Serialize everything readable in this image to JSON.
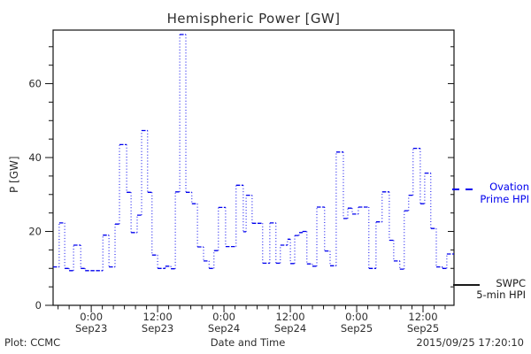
{
  "footer": {
    "plot_label": "Plot: CCMC",
    "timestamp": "2015/09/25 17:20:10"
  },
  "chart_data": {
    "type": "line",
    "subtype": "step-line-dotted",
    "title": "Hemispheric Power [GW]",
    "ylabel": "P [GW]",
    "xlabel": "Date and Time",
    "ylim": [
      0,
      74.5
    ],
    "y_major_ticks": [
      0,
      20,
      40,
      60
    ],
    "y_minor_step": 5,
    "grid": false,
    "x_span_hours": 72.5,
    "x_start": "Sep22 ~17:20",
    "x_major_ticks": [
      {
        "h": 6.9,
        "time": "0:00",
        "date": "Sep23"
      },
      {
        "h": 18.9,
        "time": "12:00",
        "date": "Sep23"
      },
      {
        "h": 30.9,
        "time": "0:00",
        "date": "Sep24"
      },
      {
        "h": 42.9,
        "time": "12:00",
        "date": "Sep24"
      },
      {
        "h": 54.9,
        "time": "0:00",
        "date": "Sep25"
      },
      {
        "h": 66.9,
        "time": "12:00",
        "date": "Sep25"
      }
    ],
    "x_minor_step_hours": 2,
    "x_minor_offset_hours": 0.9,
    "legend_position": "right-outside",
    "legend": [
      {
        "lines": [
          "Ovation",
          "Prime HPI"
        ],
        "color": "#0000ee",
        "style": "dashed"
      },
      {
        "lines": [
          "SWPC",
          "5-min HPI"
        ],
        "color": "#1a1a1a",
        "style": "solid"
      }
    ],
    "series": [
      {
        "name": "Ovation Prime HPI",
        "color": "#0000ee",
        "style": "dotted-step",
        "end_hour": 72.5,
        "steps": [
          [
            0,
            10.4
          ],
          [
            1.1,
            22.3
          ],
          [
            2.1,
            10.0
          ],
          [
            2.9,
            9.4
          ],
          [
            3.7,
            16.3
          ],
          [
            5.0,
            10.0
          ],
          [
            5.8,
            9.4
          ],
          [
            9.0,
            19.0
          ],
          [
            10.1,
            10.4
          ],
          [
            11.2,
            22.0
          ],
          [
            12.0,
            43.5
          ],
          [
            13.3,
            30.6
          ],
          [
            14.1,
            19.7
          ],
          [
            15.2,
            24.4
          ],
          [
            16.0,
            47.3
          ],
          [
            17.1,
            30.6
          ],
          [
            17.9,
            13.6
          ],
          [
            18.9,
            10.0
          ],
          [
            20.3,
            10.6
          ],
          [
            21.3,
            9.9
          ],
          [
            22.1,
            30.7
          ],
          [
            22.9,
            73.3
          ],
          [
            24.0,
            30.6
          ],
          [
            25.1,
            27.5
          ],
          [
            26.1,
            15.8
          ],
          [
            27.2,
            12.0
          ],
          [
            28.2,
            10.0
          ],
          [
            29.1,
            14.8
          ],
          [
            29.9,
            26.5
          ],
          [
            31.2,
            15.9
          ],
          [
            33.1,
            32.5
          ],
          [
            34.4,
            19.9
          ],
          [
            34.9,
            29.8
          ],
          [
            36.0,
            22.2
          ],
          [
            37.9,
            11.4
          ],
          [
            39.2,
            22.3
          ],
          [
            40.3,
            11.4
          ],
          [
            41.1,
            16.3
          ],
          [
            42.4,
            17.9
          ],
          [
            42.9,
            11.3
          ],
          [
            43.7,
            18.9
          ],
          [
            44.5,
            19.7
          ],
          [
            45.1,
            20.0
          ],
          [
            45.9,
            11.2
          ],
          [
            46.9,
            10.6
          ],
          [
            47.7,
            26.6
          ],
          [
            49.1,
            14.7
          ],
          [
            50.1,
            10.7
          ],
          [
            51.2,
            41.5
          ],
          [
            52.5,
            23.5
          ],
          [
            53.3,
            26.3
          ],
          [
            54.1,
            24.7
          ],
          [
            55.2,
            26.6
          ],
          [
            57.1,
            10.0
          ],
          [
            58.4,
            22.6
          ],
          [
            59.5,
            30.7
          ],
          [
            60.8,
            17.6
          ],
          [
            61.6,
            12.0
          ],
          [
            62.7,
            9.8
          ],
          [
            63.5,
            25.6
          ],
          [
            64.3,
            29.8
          ],
          [
            65.1,
            42.5
          ],
          [
            66.4,
            27.5
          ],
          [
            67.2,
            35.8
          ],
          [
            68.3,
            20.8
          ],
          [
            69.3,
            10.4
          ],
          [
            70.4,
            10.0
          ],
          [
            71.2,
            13.9
          ]
        ]
      }
    ]
  }
}
